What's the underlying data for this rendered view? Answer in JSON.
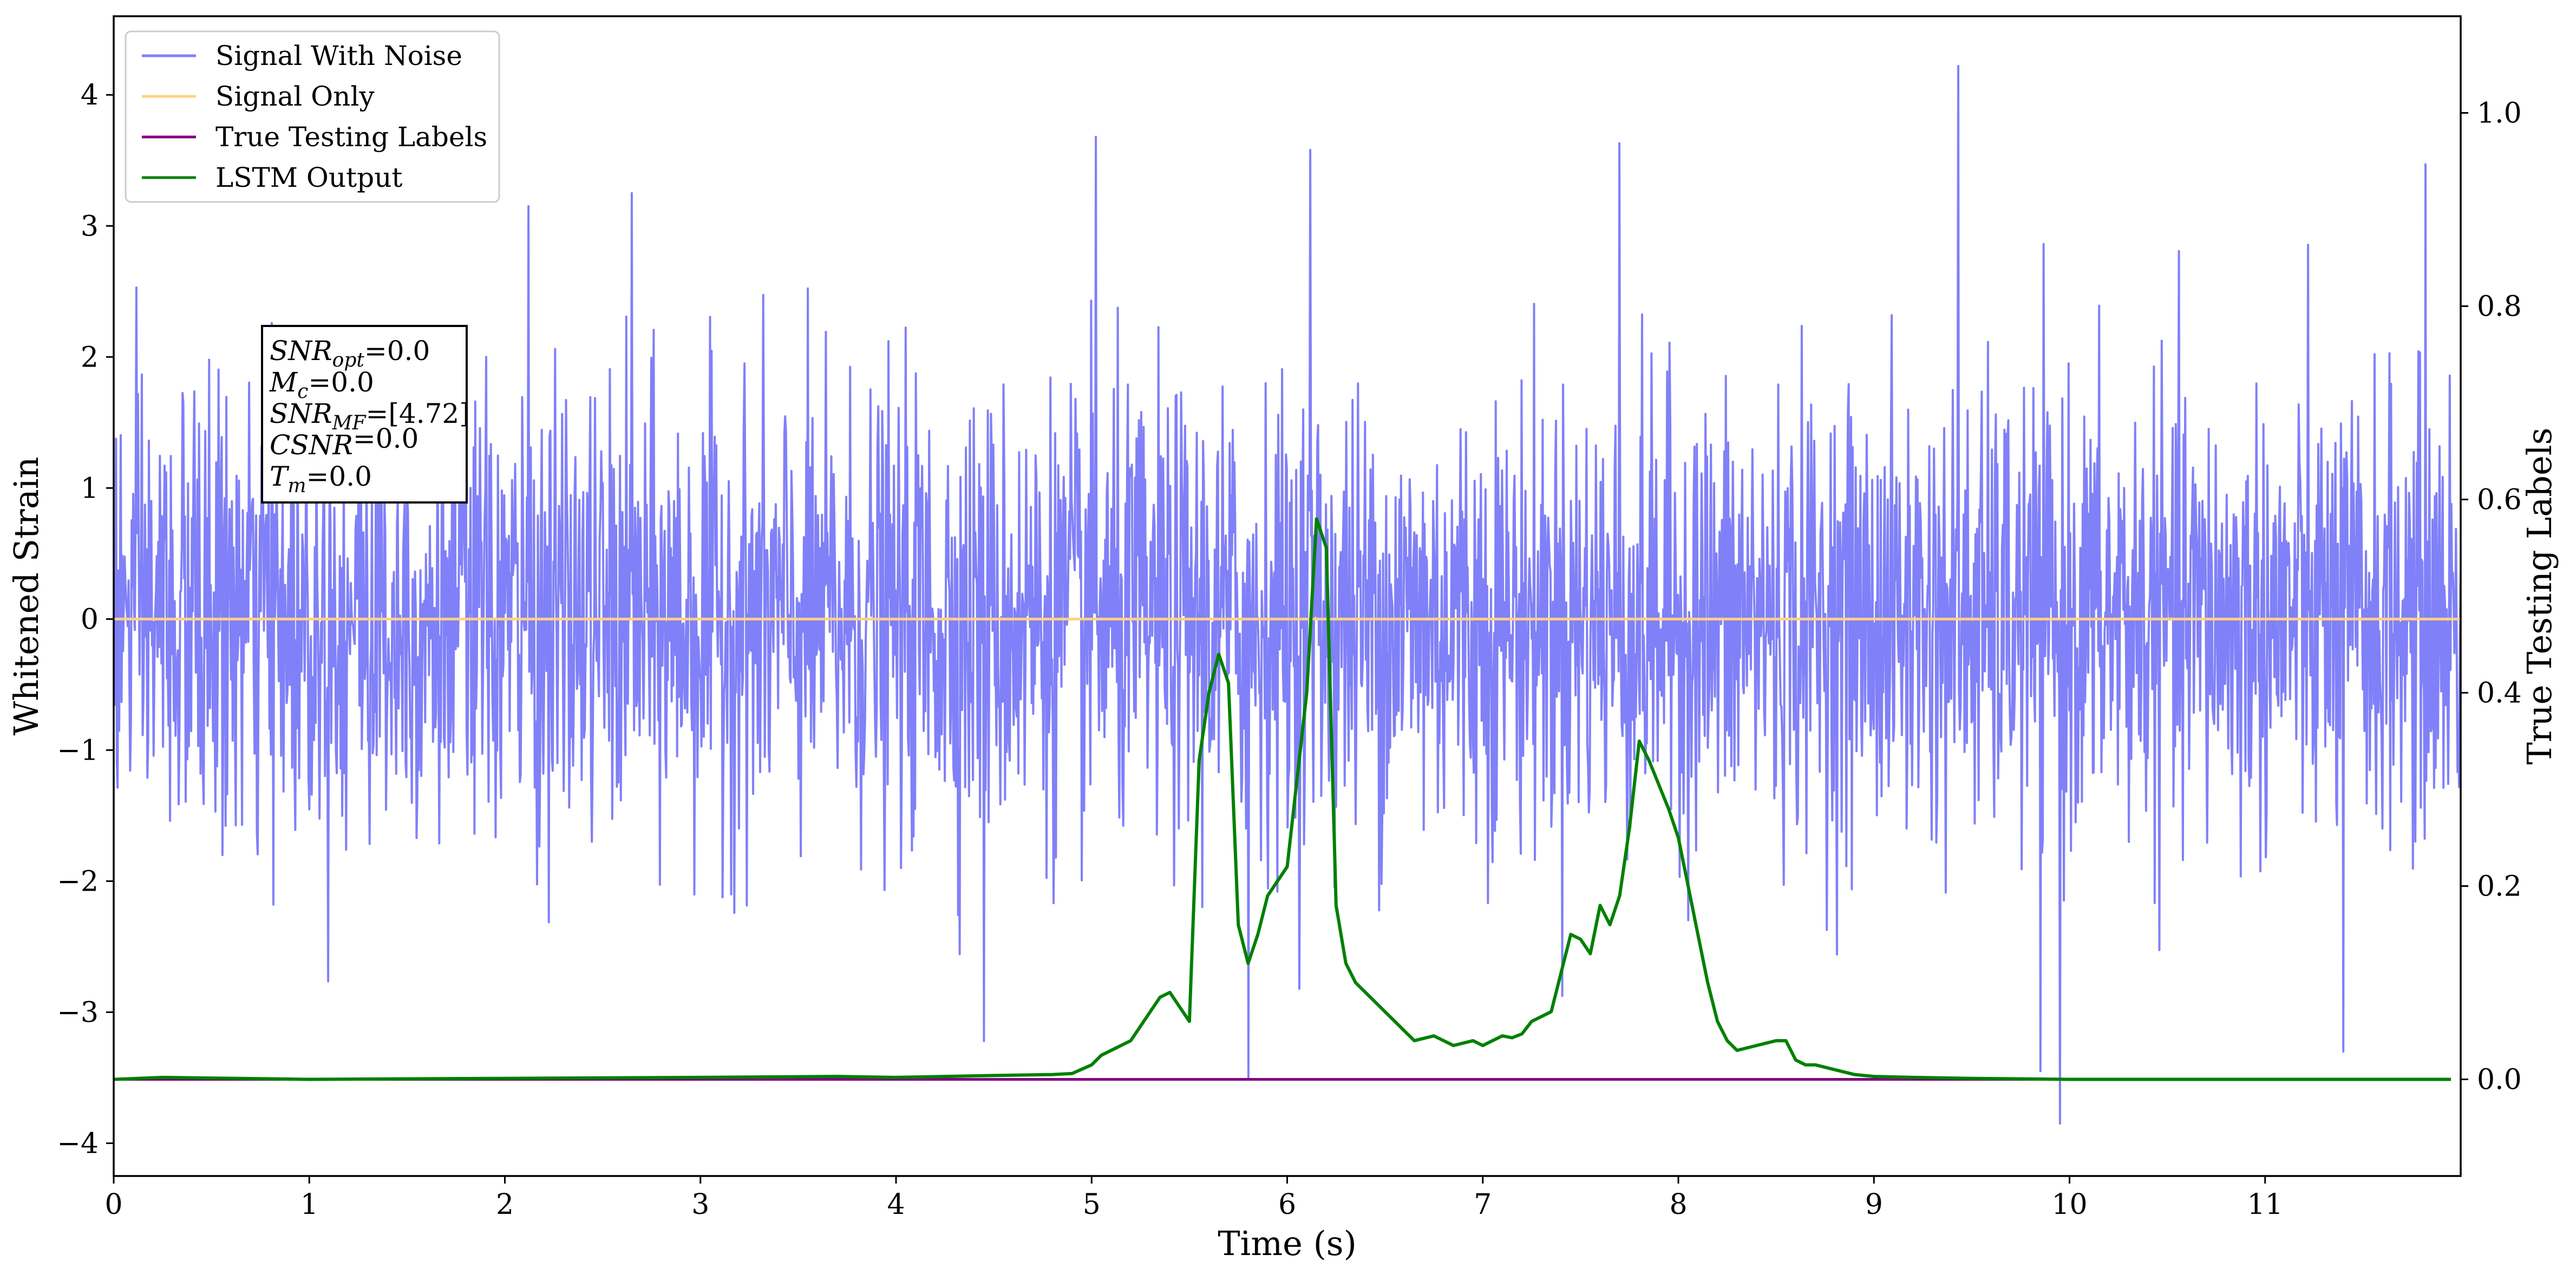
{
  "chart_data": {
    "type": "line",
    "xlabel": "Time (s)",
    "ylabel": "Whitened Strain",
    "ylabel_right": "True Testing Labels",
    "xlim": [
      0,
      12
    ],
    "ylim": [
      -4.25,
      4.6
    ],
    "ylim_right": [
      -0.1,
      1.1
    ],
    "x_ticks": [
      "0",
      "1",
      "2",
      "3",
      "4",
      "5",
      "6",
      "7",
      "8",
      "9",
      "10",
      "11"
    ],
    "y_ticks": [
      "−4",
      "−3",
      "−2",
      "−1",
      "0",
      "1",
      "2",
      "3",
      "4"
    ],
    "y_ticks_right": [
      "0.0",
      "0.2",
      "0.4",
      "0.6",
      "0.8",
      "1.0"
    ],
    "grid": false,
    "legend_position": "upper left",
    "legend": [
      {
        "label": "Signal With Noise",
        "color": "#8080f8"
      },
      {
        "label": "Signal Only",
        "color": "#ffd280"
      },
      {
        "label": "True Testing Labels",
        "color": "#800080"
      },
      {
        "label": "LSTM Output",
        "color": "#008000"
      }
    ],
    "annotation": {
      "lines": [
        {
          "label": "SNR",
          "sub": "opt",
          "value": "=0.0"
        },
        {
          "label": "M",
          "sub": "c",
          "value": "=0.0"
        },
        {
          "label": "SNR",
          "sub": "MF",
          "value": "=[4.72]"
        },
        {
          "label": "CSNR",
          "sub": "",
          "value": "=0.0"
        },
        {
          "label": "T",
          "sub": "m",
          "value": "=0.0"
        }
      ]
    },
    "series": [
      {
        "name": "Signal With Noise",
        "axis": "left",
        "color": "#8080f8",
        "description": "dense whitened noise, approx. Gaussian, sigma ~ 0.9, range approx [-3.8, 4.2]",
        "sample_count": 3000,
        "sigma": 0.85,
        "spikes": [
          {
            "x": 5.02,
            "y": 3.68
          },
          {
            "x": 6.12,
            "y": 3.58
          },
          {
            "x": 7.7,
            "y": 3.63
          },
          {
            "x": 9.43,
            "y": 4.22
          },
          {
            "x": 11.82,
            "y": 3.47
          },
          {
            "x": 2.65,
            "y": 3.25
          },
          {
            "x": 2.12,
            "y": 3.15
          },
          {
            "x": 9.95,
            "y": -3.85
          },
          {
            "x": 5.8,
            "y": -3.5
          },
          {
            "x": 4.45,
            "y": -3.22
          },
          {
            "x": 9.85,
            "y": -3.45
          },
          {
            "x": 11.4,
            "y": -3.3
          }
        ]
      },
      {
        "name": "Signal Only",
        "axis": "left",
        "color": "#ffd280",
        "x": [
          0,
          12
        ],
        "y": [
          0,
          0
        ]
      },
      {
        "name": "True Testing Labels",
        "axis": "right",
        "color": "#800080",
        "x": [
          0,
          11.95
        ],
        "y": [
          0,
          0
        ]
      },
      {
        "name": "LSTM Output",
        "axis": "right",
        "color": "#008000",
        "x": [
          0,
          0.25,
          1,
          2,
          3,
          3.7,
          4,
          4.5,
          4.8,
          4.9,
          5.0,
          5.05,
          5.1,
          5.2,
          5.3,
          5.35,
          5.4,
          5.5,
          5.55,
          5.6,
          5.65,
          5.7,
          5.75,
          5.8,
          5.85,
          5.9,
          6.0,
          6.1,
          6.15,
          6.2,
          6.25,
          6.3,
          6.35,
          6.45,
          6.55,
          6.65,
          6.75,
          6.85,
          6.95,
          7.0,
          7.05,
          7.1,
          7.15,
          7.2,
          7.25,
          7.35,
          7.45,
          7.5,
          7.55,
          7.6,
          7.65,
          7.7,
          7.75,
          7.8,
          7.85,
          7.95,
          8.0,
          8.05,
          8.1,
          8.15,
          8.2,
          8.25,
          8.3,
          8.4,
          8.5,
          8.55,
          8.6,
          8.65,
          8.7,
          8.8,
          8.9,
          9.0,
          9.2,
          9.5,
          10,
          11,
          11.95
        ],
        "y": [
          0.0,
          0.002,
          0.0,
          0.001,
          0.002,
          0.003,
          0.002,
          0.004,
          0.005,
          0.006,
          0.015,
          0.025,
          0.03,
          0.04,
          0.07,
          0.085,
          0.09,
          0.06,
          0.33,
          0.4,
          0.44,
          0.41,
          0.16,
          0.12,
          0.15,
          0.19,
          0.22,
          0.4,
          0.58,
          0.55,
          0.18,
          0.12,
          0.1,
          0.08,
          0.06,
          0.04,
          0.045,
          0.035,
          0.04,
          0.035,
          0.04,
          0.045,
          0.043,
          0.047,
          0.06,
          0.07,
          0.15,
          0.145,
          0.13,
          0.18,
          0.16,
          0.19,
          0.26,
          0.35,
          0.33,
          0.28,
          0.25,
          0.2,
          0.15,
          0.1,
          0.06,
          0.04,
          0.03,
          0.035,
          0.04,
          0.04,
          0.02,
          0.015,
          0.015,
          0.01,
          0.005,
          0.003,
          0.002,
          0.001,
          0.0,
          0.0,
          0.0
        ]
      }
    ]
  }
}
